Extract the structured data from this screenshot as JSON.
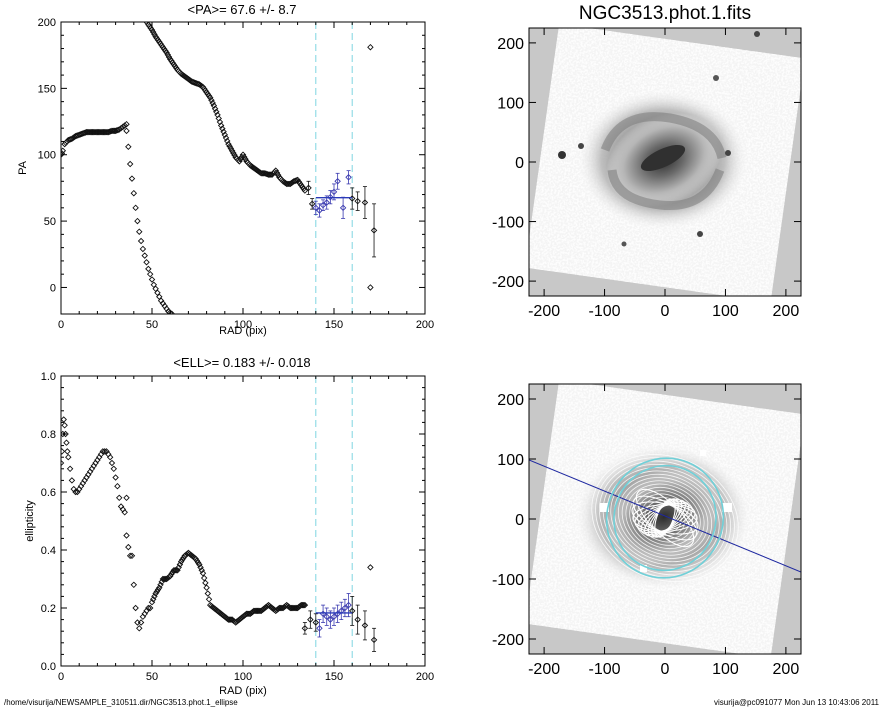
{
  "colors": {
    "marker": "#111111",
    "fit_line": "#2a3ab8",
    "fit_marker": "#3a3ab0",
    "guide": "#7fd6e0",
    "image_bg": "#c8c8c8",
    "ellipse": "#ffffff",
    "ring": "#70d0d8",
    "axis_line": "#1e28a0"
  },
  "footer": {
    "left": "/home/visurija/NEWSAMPLE_310511.dir/NGC3513.phot.1_ellipse",
    "right": "visurija@pc091077  Mon Jun 13 10:43:06 2011"
  },
  "chart_data": [
    {
      "id": "pa",
      "type": "scatter",
      "title": "<PA>=  67.6 +/-   8.7",
      "xlabel": "RAD (pix)",
      "ylabel": "PA",
      "xlim": [
        0,
        200
      ],
      "ylim": [
        -20,
        200
      ],
      "xticks": [
        "0",
        "50",
        "100",
        "150",
        "200"
      ],
      "yticks": [
        "0",
        "50",
        "100",
        "150",
        "200"
      ],
      "guides_x": [
        140,
        160
      ],
      "fit": {
        "x": [
          140,
          160
        ],
        "y": 67.6
      },
      "segments": [
        {
          "x": [
            0,
            0.5,
            1,
            2,
            4,
            6,
            8,
            10,
            12,
            14,
            16,
            18,
            20,
            22,
            24,
            26,
            28,
            30,
            32,
            33,
            34,
            35,
            36
          ],
          "y": [
            100,
            101,
            103,
            108,
            111,
            112,
            114,
            115,
            116,
            117,
            117,
            117,
            117,
            117,
            117,
            117,
            118,
            118,
            119,
            120,
            121,
            122,
            123
          ]
        },
        {
          "x": [
            36,
            37,
            38,
            39,
            40,
            41,
            42,
            43,
            44,
            45,
            46,
            47,
            48,
            49,
            50,
            51,
            52,
            53,
            54,
            55,
            56,
            57,
            58,
            59,
            60,
            61
          ],
          "y": [
            118,
            106,
            93,
            82,
            71,
            60,
            50,
            42,
            35,
            29,
            24,
            19,
            14,
            10,
            6,
            2,
            -1,
            -4,
            -7,
            -10,
            -12,
            -14,
            -16,
            -18,
            -19,
            -20
          ]
        },
        {
          "x": [
            47,
            48,
            50,
            52,
            54,
            56,
            58,
            60,
            62,
            64,
            66,
            68,
            70,
            72,
            74,
            76,
            78,
            80,
            82,
            84,
            86,
            88,
            90,
            92,
            94,
            96,
            98,
            100,
            102,
            104,
            106,
            108,
            110,
            112,
            114,
            116,
            118,
            120,
            122,
            124,
            126,
            128,
            130,
            132,
            134
          ],
          "y": [
            200,
            198,
            194,
            189,
            185,
            181,
            177,
            172,
            168,
            164,
            161,
            159,
            157,
            155,
            154,
            153,
            151,
            147,
            143,
            137,
            130,
            122,
            115,
            108,
            103,
            98,
            95,
            100,
            95,
            92,
            90,
            88,
            86,
            86,
            85,
            85,
            88,
            83,
            80,
            78,
            78,
            80,
            81,
            77,
            73
          ]
        }
      ],
      "errorbars": {
        "x": [
          136,
          138,
          140,
          142,
          144,
          146,
          148,
          150,
          152,
          155,
          158,
          160,
          163,
          167,
          172
        ],
        "y": [
          75,
          63,
          60,
          58,
          62,
          64,
          68,
          72,
          80,
          60,
          83,
          67,
          65,
          64,
          43
        ],
        "err": [
          5,
          4,
          5,
          5,
          4,
          5,
          5,
          6,
          6,
          8,
          5,
          8,
          7,
          12,
          20
        ],
        "fit_index": [
          2,
          3,
          4,
          5,
          6,
          7,
          8,
          9,
          10
        ]
      },
      "outliers": [
        {
          "x": 170,
          "y": 181
        },
        {
          "x": 170,
          "y": 0
        }
      ]
    },
    {
      "id": "ell",
      "type": "scatter",
      "title": "<ELL>= 0.183 +/-  0.018",
      "xlabel": "RAD (pix)",
      "ylabel": "ellipticity",
      "xlim": [
        0,
        200
      ],
      "ylim": [
        0.0,
        1.0
      ],
      "xticks": [
        "0",
        "50",
        "100",
        "150",
        "200"
      ],
      "yticks": [
        "0.0",
        "0.2",
        "0.4",
        "0.6",
        "0.8",
        "1.0"
      ],
      "guides_x": [
        140,
        160
      ],
      "fit": {
        "x": [
          140,
          160
        ],
        "y": 0.183
      },
      "segments": [
        {
          "x": [
            0,
            0.5,
            1,
            1.5,
            2,
            2.5,
            3,
            3.5,
            4,
            5,
            6,
            7,
            8,
            9,
            10,
            11,
            12,
            13,
            14,
            15,
            16,
            17,
            18,
            19,
            20,
            21,
            22,
            23,
            24,
            25,
            26,
            27,
            28,
            29,
            30,
            31,
            32,
            33,
            34,
            35,
            36
          ],
          "y": [
            0.7,
            0.74,
            0.8,
            0.85,
            0.83,
            0.8,
            0.77,
            0.74,
            0.72,
            0.68,
            0.64,
            0.61,
            0.6,
            0.6,
            0.61,
            0.62,
            0.63,
            0.64,
            0.65,
            0.66,
            0.67,
            0.68,
            0.69,
            0.7,
            0.71,
            0.72,
            0.73,
            0.74,
            0.74,
            0.74,
            0.73,
            0.72,
            0.7,
            0.68,
            0.65,
            0.62,
            0.58,
            0.55,
            0.54,
            0.53,
            0.58
          ]
        },
        {
          "x": [
            36,
            37,
            38,
            39,
            40,
            41,
            42,
            43,
            44,
            45,
            46,
            47,
            48,
            49,
            50,
            52,
            54,
            56,
            58,
            60,
            62,
            64,
            66,
            68,
            70,
            72,
            74,
            76,
            78,
            80,
            82,
            84,
            86,
            88,
            90,
            92,
            94,
            96,
            98,
            100,
            102,
            104,
            106,
            108,
            110,
            112,
            114,
            116,
            118,
            120,
            122,
            124,
            126,
            128,
            130,
            132,
            134
          ],
          "y": [
            0.45,
            0.41,
            0.38,
            0.38,
            0.28,
            0.2,
            0.15,
            0.13,
            0.15,
            0.17,
            0.18,
            0.19,
            0.2,
            0.2,
            0.22,
            0.25,
            0.27,
            0.3,
            0.3,
            0.31,
            0.33,
            0.33,
            0.36,
            0.38,
            0.39,
            0.38,
            0.37,
            0.35,
            0.32,
            0.27,
            0.21,
            0.2,
            0.19,
            0.18,
            0.17,
            0.16,
            0.16,
            0.15,
            0.16,
            0.17,
            0.18,
            0.18,
            0.19,
            0.19,
            0.19,
            0.2,
            0.21,
            0.2,
            0.19,
            0.2,
            0.2,
            0.21,
            0.2,
            0.2,
            0.2,
            0.21,
            0.21
          ]
        }
      ],
      "errorbars": {
        "x": [
          134,
          137,
          140,
          142,
          144,
          146,
          148,
          150,
          152,
          154,
          156,
          158,
          160,
          163,
          167,
          172
        ],
        "y": [
          0.13,
          0.16,
          0.15,
          0.13,
          0.18,
          0.17,
          0.16,
          0.17,
          0.18,
          0.19,
          0.2,
          0.21,
          0.19,
          0.16,
          0.14,
          0.09
        ],
        "err": [
          0.02,
          0.03,
          0.03,
          0.03,
          0.03,
          0.03,
          0.03,
          0.03,
          0.03,
          0.03,
          0.03,
          0.04,
          0.05,
          0.05,
          0.05,
          0.04
        ],
        "fit_index": [
          3,
          4,
          5,
          6,
          7,
          8,
          9,
          10,
          11
        ]
      },
      "outliers": [
        {
          "x": 170,
          "y": 0.34
        }
      ]
    },
    {
      "id": "img_top",
      "type": "heatmap",
      "title": "NGC3513.phot.1.fits",
      "xlim": [
        -225,
        225
      ],
      "ylim": [
        -225,
        225
      ],
      "xticks": [
        "-200",
        "-100",
        "0",
        "100",
        "200"
      ],
      "yticks": [
        "-200",
        "-100",
        "0",
        "100",
        "200"
      ],
      "rotation_deg": 8
    },
    {
      "id": "img_bottom",
      "type": "heatmap",
      "title": "",
      "xlim": [
        -225,
        225
      ],
      "ylim": [
        -225,
        225
      ],
      "xticks": [
        "-200",
        "-100",
        "0",
        "100",
        "200"
      ],
      "yticks": [
        "-200",
        "-100",
        "0",
        "100",
        "200"
      ],
      "rotation_deg": 8,
      "mean_pa": 67.6,
      "mean_ell": 0.183,
      "fit_radii": [
        140,
        160
      ]
    }
  ]
}
